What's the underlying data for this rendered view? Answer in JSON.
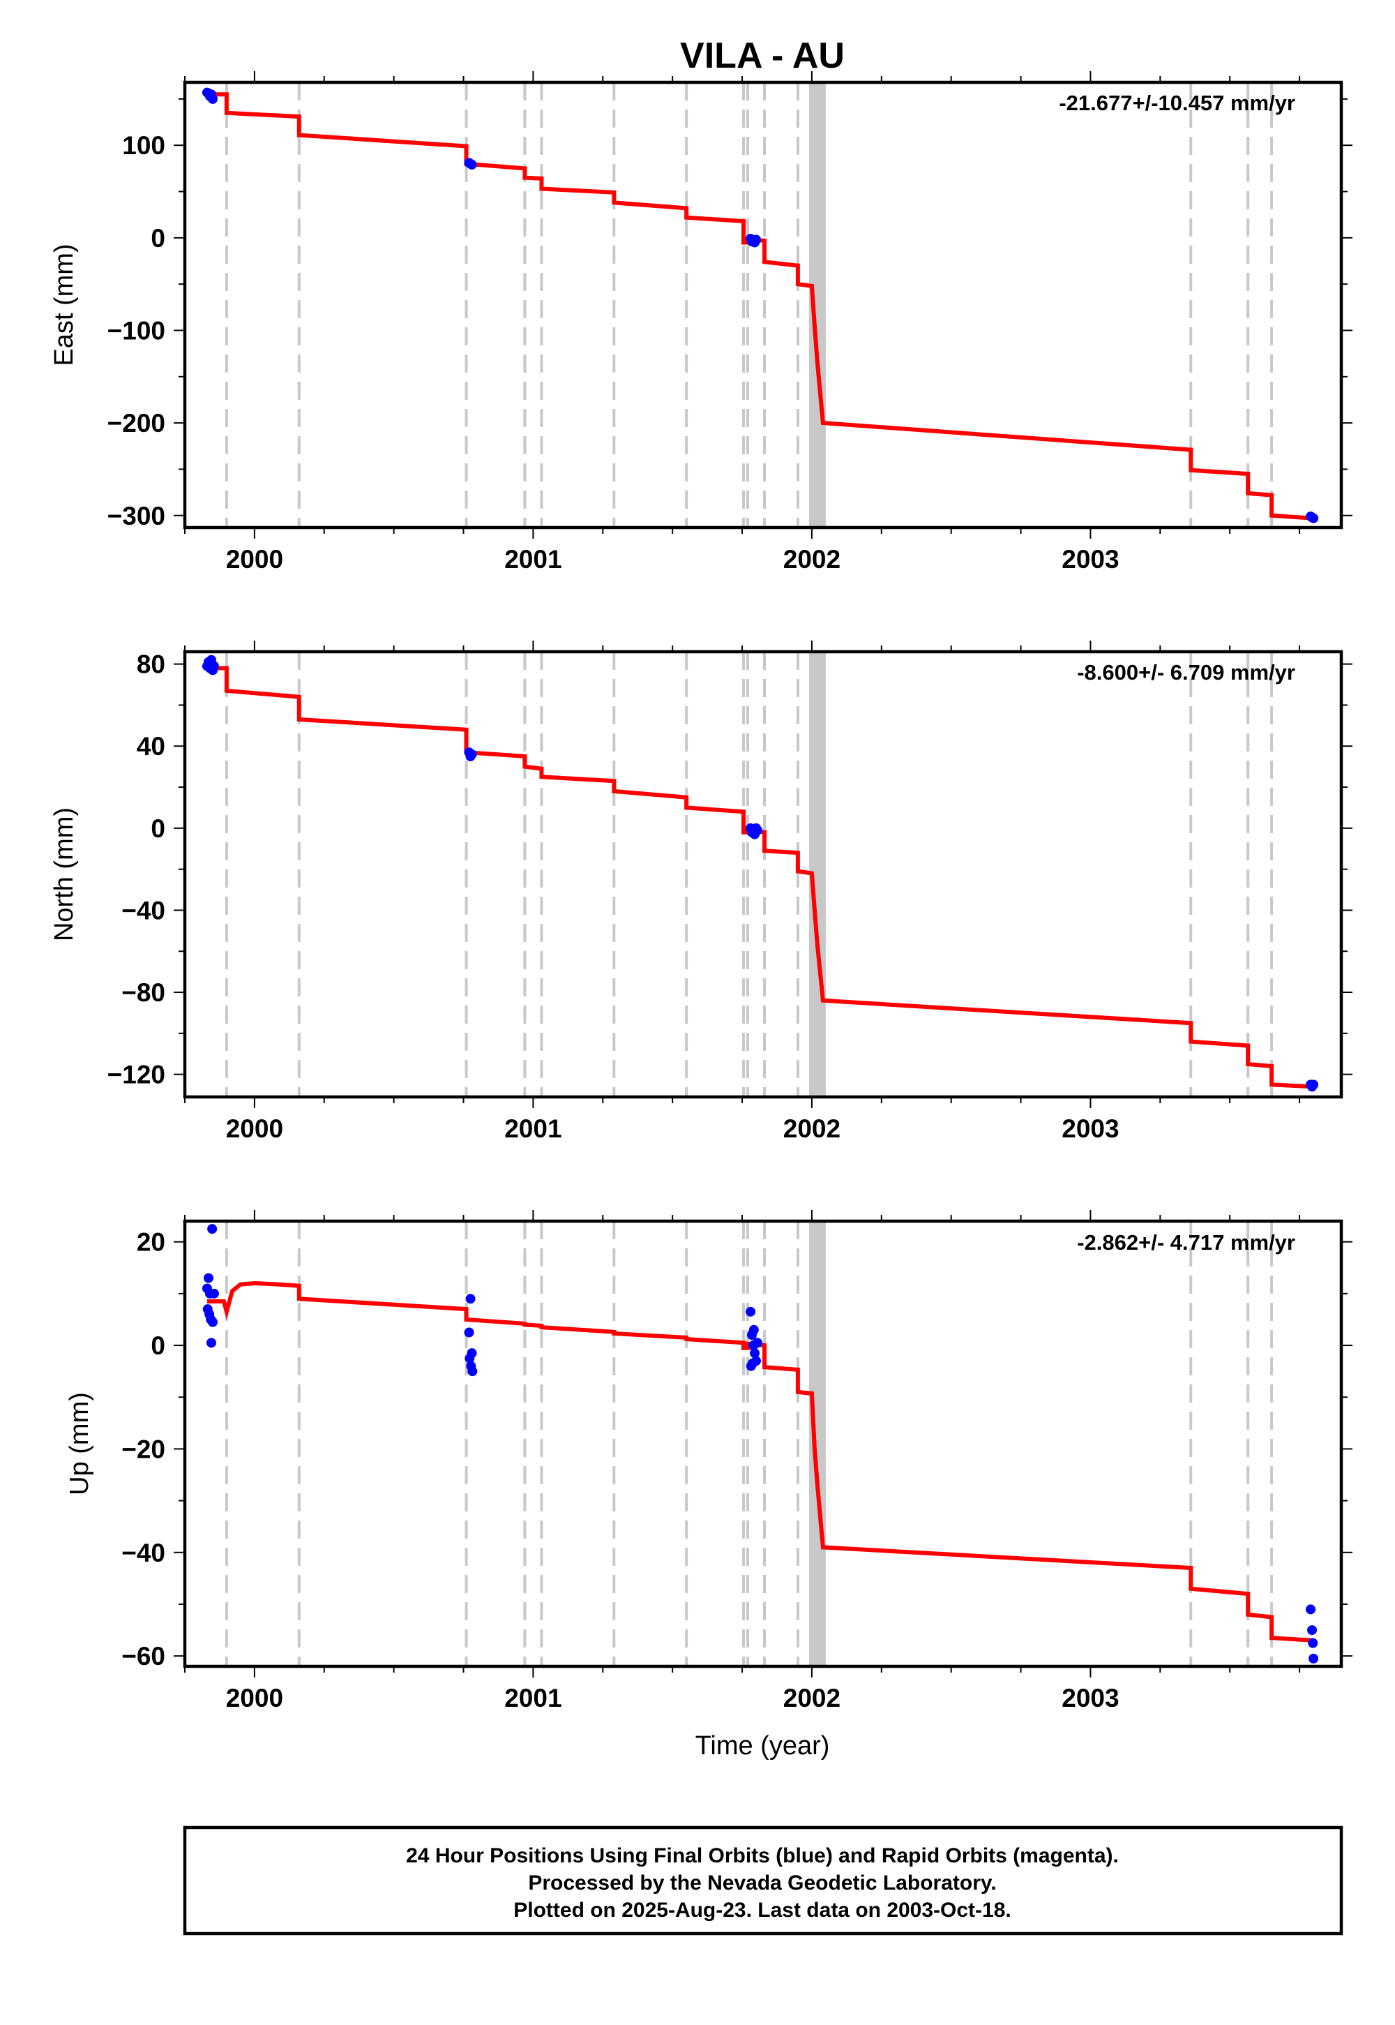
{
  "figure": {
    "title": "VILA - AU",
    "footer": [
      "24 Hour Positions Using Final Orbits (blue) and Rapid Orbits (magenta).",
      "Processed by the Nevada Geodetic Laboratory.",
      "Plotted on 2025-Aug-23. Last data on 2003-Oct-18."
    ],
    "colors": {
      "model": "#ff0000",
      "data_final": "#0000ff",
      "data_rapid": "#ff00ff",
      "event_lines": "#c8c8c8"
    }
  },
  "chart_data": [
    {
      "type": "scatter",
      "ylabel": "East (mm)",
      "xlabel": "",
      "rate_label": "-21.677+/-10.457 mm/yr",
      "xlim": [
        1999.75,
        2003.9
      ],
      "ylim": [
        -313,
        168
      ],
      "x_ticks": [
        2000,
        2001,
        2002,
        2003
      ],
      "y_ticks": [
        -300,
        -200,
        -100,
        0,
        100
      ],
      "grid": false,
      "events": [
        1999.9,
        2000.16,
        2000.76,
        2000.97,
        2001.03,
        2001.29,
        2001.55,
        2001.755,
        2001.77,
        2001.83,
        2001.95,
        2003.36,
        2003.565,
        2003.65
      ],
      "event_band": [
        2002.0,
        2002.04
      ],
      "model": [
        [
          1999.83,
          155
        ],
        [
          1999.9,
          155
        ],
        [
          1999.9,
          135
        ],
        [
          2000.16,
          131
        ],
        [
          2000.16,
          111
        ],
        [
          2000.76,
          99
        ],
        [
          2000.76,
          80
        ],
        [
          2000.97,
          75
        ],
        [
          2000.97,
          65
        ],
        [
          2001.03,
          64
        ],
        [
          2001.03,
          53
        ],
        [
          2001.29,
          49
        ],
        [
          2001.29,
          38
        ],
        [
          2001.55,
          32
        ],
        [
          2001.55,
          22
        ],
        [
          2001.755,
          18
        ],
        [
          2001.755,
          -5
        ],
        [
          2001.77,
          -5
        ],
        [
          2001.77,
          -2
        ],
        [
          2001.83,
          -3
        ],
        [
          2001.83,
          -26
        ],
        [
          2001.95,
          -30
        ],
        [
          2001.95,
          -50
        ],
        [
          2002.0,
          -52
        ],
        [
          2002.01,
          -95
        ],
        [
          2002.02,
          -135
        ],
        [
          2002.04,
          -200
        ],
        [
          2003.36,
          -229
        ],
        [
          2003.36,
          -251
        ],
        [
          2003.565,
          -255
        ],
        [
          2003.565,
          -276
        ],
        [
          2003.65,
          -278
        ],
        [
          2003.65,
          -300
        ],
        [
          2003.8,
          -303
        ]
      ],
      "points": [
        [
          1999.83,
          157
        ],
        [
          1999.835,
          156
        ],
        [
          1999.84,
          153
        ],
        [
          1999.845,
          155
        ],
        [
          1999.85,
          150
        ],
        [
          2000.77,
          81
        ],
        [
          2000.775,
          80
        ],
        [
          2000.78,
          79
        ],
        [
          2001.78,
          -1
        ],
        [
          2001.785,
          -4
        ],
        [
          2001.79,
          -3
        ],
        [
          2001.795,
          -5
        ],
        [
          2001.8,
          -2
        ],
        [
          2003.79,
          -301
        ],
        [
          2003.795,
          -302
        ],
        [
          2003.8,
          -303
        ]
      ]
    },
    {
      "type": "scatter",
      "ylabel": "North (mm)",
      "xlabel": "",
      "rate_label": "-8.600+/- 6.709 mm/yr",
      "xlim": [
        1999.75,
        2003.9
      ],
      "ylim": [
        -131,
        86
      ],
      "x_ticks": [
        2000,
        2001,
        2002,
        2003
      ],
      "y_ticks": [
        -120,
        -80,
        -40,
        0,
        40,
        80
      ],
      "grid": false,
      "events": [
        1999.9,
        2000.16,
        2000.76,
        2000.97,
        2001.03,
        2001.29,
        2001.55,
        2001.755,
        2001.77,
        2001.83,
        2001.95,
        2003.36,
        2003.565,
        2003.65
      ],
      "event_band": [
        2002.0,
        2002.04
      ],
      "model": [
        [
          1999.83,
          78
        ],
        [
          1999.9,
          78
        ],
        [
          1999.9,
          67
        ],
        [
          2000.16,
          64
        ],
        [
          2000.16,
          53
        ],
        [
          2000.76,
          48
        ],
        [
          2000.76,
          37
        ],
        [
          2000.97,
          35
        ],
        [
          2000.97,
          30
        ],
        [
          2001.03,
          29
        ],
        [
          2001.03,
          25
        ],
        [
          2001.29,
          23
        ],
        [
          2001.29,
          18
        ],
        [
          2001.55,
          15
        ],
        [
          2001.55,
          10
        ],
        [
          2001.755,
          8
        ],
        [
          2001.755,
          -2
        ],
        [
          2001.77,
          -2
        ],
        [
          2001.77,
          -1
        ],
        [
          2001.83,
          -2
        ],
        [
          2001.83,
          -11
        ],
        [
          2001.95,
          -12
        ],
        [
          2001.95,
          -21
        ],
        [
          2002.0,
          -22
        ],
        [
          2002.01,
          -40
        ],
        [
          2002.02,
          -57
        ],
        [
          2002.04,
          -84
        ],
        [
          2003.36,
          -95
        ],
        [
          2003.36,
          -104
        ],
        [
          2003.565,
          -106
        ],
        [
          2003.565,
          -115
        ],
        [
          2003.65,
          -116
        ],
        [
          2003.65,
          -125
        ],
        [
          2003.8,
          -126
        ]
      ],
      "points": [
        [
          1999.83,
          79
        ],
        [
          1999.835,
          81
        ],
        [
          1999.84,
          78
        ],
        [
          1999.845,
          82
        ],
        [
          1999.85,
          77
        ],
        [
          1999.855,
          79
        ],
        [
          2000.77,
          37
        ],
        [
          2000.775,
          35
        ],
        [
          2000.78,
          36
        ],
        [
          2001.78,
          0
        ],
        [
          2001.785,
          -2
        ],
        [
          2001.79,
          -1
        ],
        [
          2001.795,
          -3
        ],
        [
          2001.8,
          0
        ],
        [
          2001.805,
          -1
        ],
        [
          2003.79,
          -125
        ],
        [
          2003.795,
          -126
        ],
        [
          2003.8,
          -125
        ]
      ]
    },
    {
      "type": "scatter",
      "ylabel": "Up (mm)",
      "xlabel": "Time (year)",
      "rate_label": "-2.862+/- 4.717 mm/yr",
      "xlim": [
        1999.75,
        2003.9
      ],
      "ylim": [
        -62,
        24
      ],
      "x_ticks": [
        2000,
        2001,
        2002,
        2003
      ],
      "y_ticks": [
        -60,
        -40,
        -20,
        0,
        20
      ],
      "grid": false,
      "events": [
        1999.9,
        2000.16,
        2000.76,
        2000.97,
        2001.03,
        2001.29,
        2001.55,
        2001.755,
        2001.77,
        2001.83,
        2001.95,
        2003.36,
        2003.565,
        2003.65
      ],
      "event_band": [
        2002.0,
        2002.04
      ],
      "model": [
        [
          1999.83,
          8.5
        ],
        [
          1999.89,
          8.5
        ],
        [
          1999.9,
          6.5
        ],
        [
          1999.92,
          10.5
        ],
        [
          1999.95,
          11.8
        ],
        [
          2000.0,
          12.0
        ],
        [
          2000.08,
          11.8
        ],
        [
          2000.16,
          11.5
        ],
        [
          2000.16,
          9.0
        ],
        [
          2000.76,
          7.0
        ],
        [
          2000.76,
          5.0
        ],
        [
          2000.97,
          4.2
        ],
        [
          2000.97,
          4.0
        ],
        [
          2001.03,
          3.8
        ],
        [
          2001.03,
          3.5
        ],
        [
          2001.29,
          2.6
        ],
        [
          2001.29,
          2.3
        ],
        [
          2001.55,
          1.5
        ],
        [
          2001.55,
          1.2
        ],
        [
          2001.755,
          0.5
        ],
        [
          2001.755,
          -0.5
        ],
        [
          2001.77,
          -0.5
        ],
        [
          2001.77,
          0.3
        ],
        [
          2001.83,
          0.0
        ],
        [
          2001.83,
          -4.2
        ],
        [
          2001.95,
          -4.7
        ],
        [
          2001.95,
          -9.0
        ],
        [
          2002.0,
          -9.3
        ],
        [
          2002.01,
          -20
        ],
        [
          2002.02,
          -27
        ],
        [
          2002.04,
          -39
        ],
        [
          2003.36,
          -43
        ],
        [
          2003.36,
          -47
        ],
        [
          2003.565,
          -48
        ],
        [
          2003.565,
          -52
        ],
        [
          2003.65,
          -52.5
        ],
        [
          2003.65,
          -56.5
        ],
        [
          2003.8,
          -57
        ]
      ],
      "points": [
        [
          1999.83,
          11
        ],
        [
          1999.832,
          7
        ],
        [
          1999.835,
          13
        ],
        [
          1999.838,
          6
        ],
        [
          1999.84,
          10
        ],
        [
          1999.843,
          5
        ],
        [
          1999.845,
          0.5
        ],
        [
          1999.848,
          22.5
        ],
        [
          1999.85,
          4.5
        ],
        [
          1999.855,
          10
        ],
        [
          2000.77,
          2.5
        ],
        [
          2000.772,
          -2.5
        ],
        [
          2000.775,
          9
        ],
        [
          2000.777,
          -4
        ],
        [
          2000.78,
          -1.5
        ],
        [
          2000.782,
          -5
        ],
        [
          2001.78,
          6.5
        ],
        [
          2001.782,
          -4
        ],
        [
          2001.785,
          2
        ],
        [
          2001.787,
          -3.5
        ],
        [
          2001.79,
          0
        ],
        [
          2001.792,
          3
        ],
        [
          2001.795,
          -1.5
        ],
        [
          2001.8,
          -3
        ],
        [
          2001.805,
          0.5
        ],
        [
          2003.79,
          -51
        ],
        [
          2003.795,
          -55
        ],
        [
          2003.798,
          -57.5
        ],
        [
          2003.8,
          -60.5
        ]
      ]
    }
  ]
}
